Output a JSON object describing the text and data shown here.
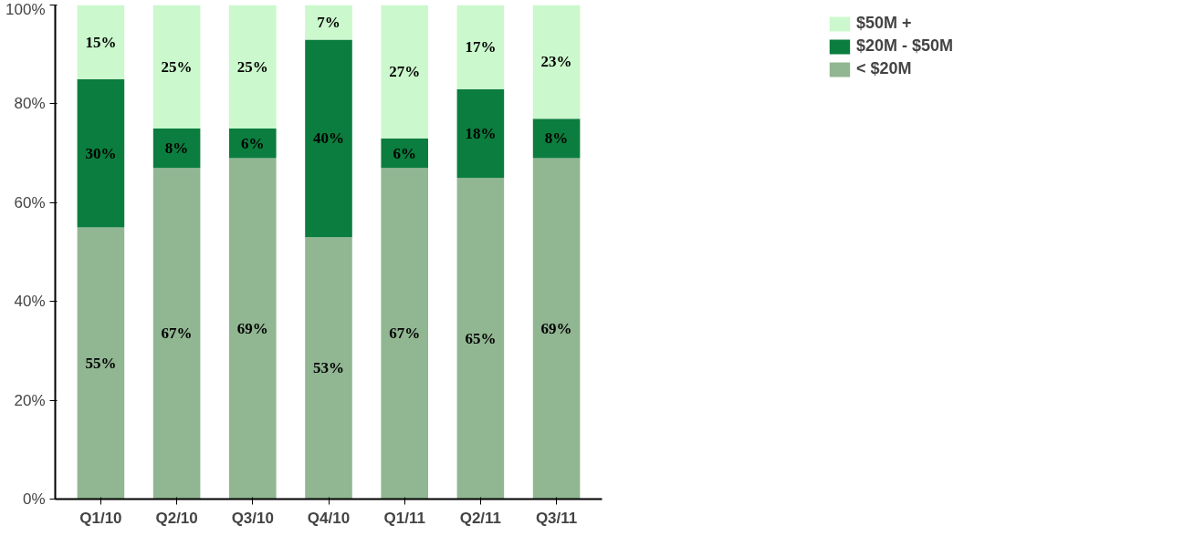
{
  "chart_data": {
    "type": "bar",
    "stacked": true,
    "categories": [
      "Q1/10",
      "Q2/10",
      "Q3/10",
      "Q4/10",
      "Q1/11",
      "Q2/11",
      "Q3/11"
    ],
    "series": [
      {
        "name": "< $20M",
        "color": "#91b692",
        "values": [
          55,
          67,
          69,
          53,
          67,
          65,
          69
        ],
        "value_labels": [
          "55%",
          "67%",
          "69%",
          "53%",
          "67%",
          "65%",
          "69%"
        ]
      },
      {
        "name": "$20M - $50M",
        "color": "#0b7d3e",
        "values": [
          30,
          8,
          6,
          40,
          6,
          18,
          8
        ],
        "value_labels": [
          "30%",
          "8%",
          "6%",
          "40%",
          "6%",
          "18%",
          "8%"
        ]
      },
      {
        "name": "$50M +",
        "color": "#cbf8cc",
        "values": [
          15,
          25,
          25,
          7,
          27,
          17,
          23
        ],
        "value_labels": [
          "15%",
          "25%",
          "25%",
          "7%",
          "27%",
          "17%",
          "23%"
        ]
      }
    ],
    "ylim": [
      0,
      100
    ],
    "yticks": [
      {
        "value": 0,
        "label": "0%"
      },
      {
        "value": 20,
        "label": "20%"
      },
      {
        "value": 40,
        "label": "40%"
      },
      {
        "value": 60,
        "label": "60%"
      },
      {
        "value": 80,
        "label": "80%"
      },
      {
        "value": 100,
        "label": "100%"
      }
    ],
    "grid": false,
    "legend": "top right"
  }
}
